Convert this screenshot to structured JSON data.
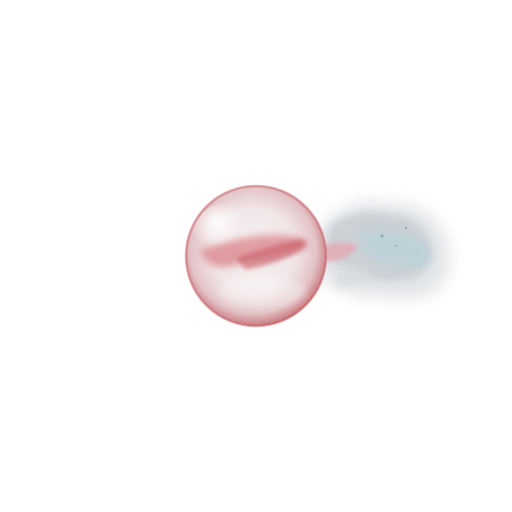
{
  "scene": {
    "subject": "orb-with-smoke-trail",
    "colors": {
      "background": "#ffffff",
      "orb_rim": "#c4626a",
      "orb_core": "#f4eeee",
      "orb_swirl": "#cf5a64",
      "smoke_light": "#e6e8ea",
      "smoke_mid": "#c9ced3",
      "smoke_blue": "#b8d2da",
      "smoke_pink": "#e4a9b1"
    }
  }
}
